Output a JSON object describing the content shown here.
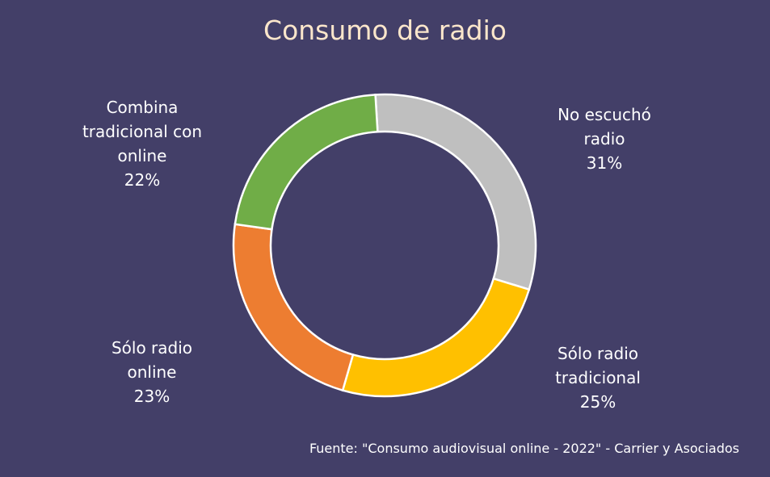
{
  "chart_data": {
    "type": "donut",
    "title": "Consumo de radio",
    "categories": [
      "No escuchó radio",
      "Sólo radio tradicional",
      "Sólo radio online",
      "Combina tradicional con online"
    ],
    "values": [
      31,
      25,
      23,
      22
    ],
    "value_labels": [
      "31%",
      "25%",
      "23%",
      "22%"
    ],
    "colors": [
      "#bfbfbf",
      "#ffc000",
      "#ed7d31",
      "#70ad47"
    ],
    "source": "Fuente: \"Consumo audiovisual online - 2022\" - Carrier y Asociados"
  }
}
